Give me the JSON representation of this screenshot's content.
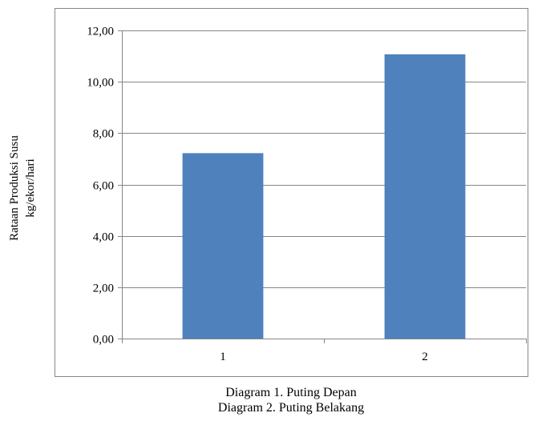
{
  "chart_data": {
    "type": "bar",
    "categories": [
      "1",
      "2"
    ],
    "values": [
      7.22,
      11.07
    ],
    "ylim": [
      0,
      12
    ],
    "yticks": [
      "0,00",
      "2,00",
      "4,00",
      "6,00",
      "8,00",
      "10,00",
      "12,00"
    ],
    "ylabel_line1": "Rataan Produksi Susu",
    "ylabel_line2": "kg/ekor/hari",
    "xlabel": "",
    "title": "",
    "grid": true,
    "legend": "none",
    "bar_color": "#4F81BD"
  },
  "captions": [
    "Diagram 1. Puting Depan",
    "Diagram 2. Puting Belakang"
  ]
}
